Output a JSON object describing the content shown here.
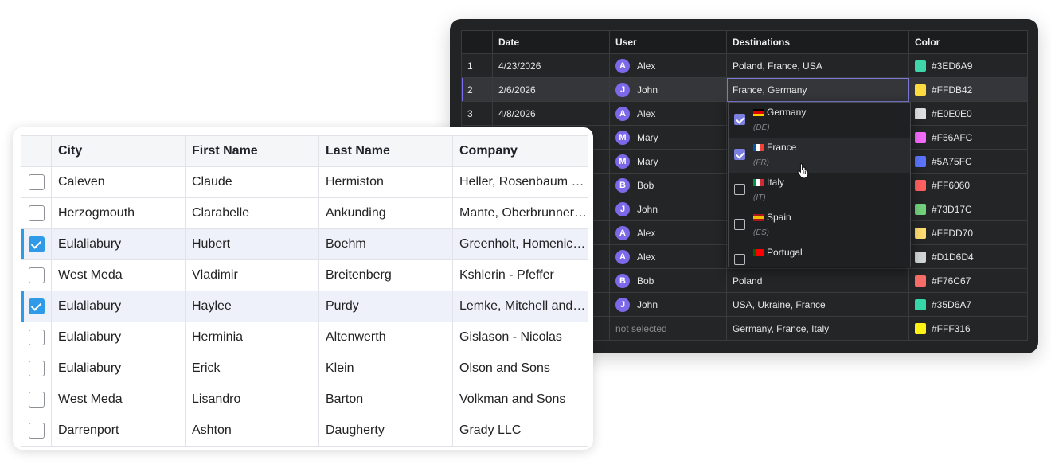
{
  "dark_grid": {
    "columns": [
      "",
      "Date",
      "User",
      "Destinations",
      "Color"
    ],
    "rows": [
      {
        "num": "1",
        "date": "4/23/2026",
        "avatar": "A",
        "user": "Alex",
        "dest": "Poland, France, USA",
        "color": "#3ED6A9"
      },
      {
        "num": "2",
        "date": "2/6/2026",
        "avatar": "J",
        "user": "John",
        "dest": "France, Germany",
        "color": "#FFDB42"
      },
      {
        "num": "3",
        "date": "4/8/2026",
        "avatar": "A",
        "user": "Alex",
        "dest": "",
        "color": "#E0E0E0"
      },
      {
        "num": "",
        "date": "",
        "avatar": "M",
        "user": "Mary",
        "dest": "",
        "color": "#F56AFC"
      },
      {
        "num": "",
        "date": "",
        "avatar": "M",
        "user": "Mary",
        "dest": "",
        "color": "#5A75FC"
      },
      {
        "num": "",
        "date": "",
        "avatar": "B",
        "user": "Bob",
        "dest": "",
        "color": "#FF6060"
      },
      {
        "num": "",
        "date": "",
        "avatar": "J",
        "user": "John",
        "dest": "",
        "color": "#73D17C"
      },
      {
        "num": "",
        "date": "",
        "avatar": "A",
        "user": "Alex",
        "dest": "",
        "color": "#FFDD70"
      },
      {
        "num": "",
        "date": "",
        "avatar": "A",
        "user": "Alex",
        "dest": "",
        "color": "#D1D6D4"
      },
      {
        "num": "",
        "date": "",
        "avatar": "B",
        "user": "Bob",
        "dest": "Poland",
        "color": "#F76C67"
      },
      {
        "num": "",
        "date": "",
        "avatar": "J",
        "user": "John",
        "dest": "USA, Ukraine, France",
        "color": "#35D6A7"
      },
      {
        "num": "",
        "date": "",
        "avatar": "",
        "user": "not selected",
        "dest": "Germany, France, Italy",
        "color": "#FFF316"
      }
    ],
    "active_row": 1
  },
  "dropdown": {
    "items": [
      {
        "name": "Germany",
        "code": "(DE)",
        "checked": true,
        "flag": [
          "#000000",
          "#DD0000",
          "#FFCE00"
        ],
        "flag_dir": "h"
      },
      {
        "name": "France",
        "code": "(FR)",
        "checked": true,
        "flag": [
          "#0055A4",
          "#FFFFFF",
          "#EF4135"
        ],
        "flag_dir": "v"
      },
      {
        "name": "Italy",
        "code": "(IT)",
        "checked": false,
        "flag": [
          "#009246",
          "#FFFFFF",
          "#CE2B37"
        ],
        "flag_dir": "v"
      },
      {
        "name": "Spain",
        "code": "(ES)",
        "checked": false,
        "flag": [
          "#AA151B",
          "#F1BF00",
          "#AA151B"
        ],
        "flag_dir": "h"
      },
      {
        "name": "Portugal",
        "code": "",
        "checked": false,
        "flag": [
          "#006600",
          "#FF0000",
          "#FF0000"
        ],
        "flag_dir": "v"
      }
    ],
    "hover_index": 1
  },
  "light_grid": {
    "columns": [
      "",
      "City",
      "First Name",
      "Last Name",
      "Company"
    ],
    "rows": [
      {
        "checked": false,
        "city": "Caleven",
        "first": "Claude",
        "last": "Hermiston",
        "company": "Heller, Rosenbaum and Lockman"
      },
      {
        "checked": false,
        "city": "Herzogmouth",
        "first": "Clarabelle",
        "last": "Ankunding",
        "company": "Mante, Oberbrunner and Sons"
      },
      {
        "checked": true,
        "city": "Eulaliabury",
        "first": "Hubert",
        "last": "Boehm",
        "company": "Greenholt, Homenick and Sons"
      },
      {
        "checked": false,
        "city": "West Meda",
        "first": "Vladimir",
        "last": "Breitenberg",
        "company": "Kshlerin - Pfeffer"
      },
      {
        "checked": true,
        "city": "Eulaliabury",
        "first": "Haylee",
        "last": "Purdy",
        "company": "Lemke, Mitchell and Sons"
      },
      {
        "checked": false,
        "city": "Eulaliabury",
        "first": "Herminia",
        "last": "Altenwerth",
        "company": "Gislason - Nicolas"
      },
      {
        "checked": false,
        "city": "Eulaliabury",
        "first": "Erick",
        "last": "Klein",
        "company": "Olson and Sons"
      },
      {
        "checked": false,
        "city": "West Meda",
        "first": "Lisandro",
        "last": "Barton",
        "company": "Volkman and Sons"
      },
      {
        "checked": false,
        "city": "Darrenport",
        "first": "Ashton",
        "last": "Daugherty",
        "company": "Grady LLC"
      }
    ]
  }
}
